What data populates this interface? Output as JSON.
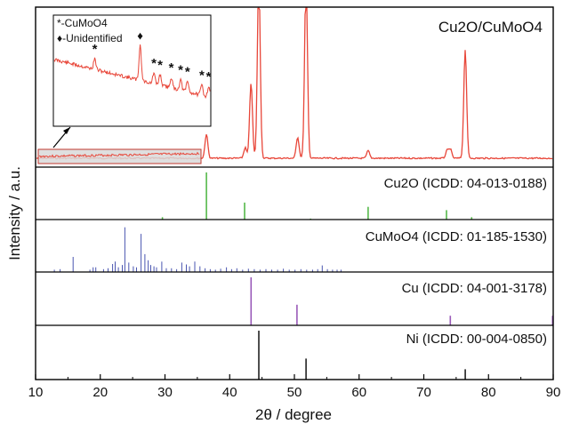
{
  "chart_data": {
    "type": "line",
    "xlabel": "2θ / degree",
    "ylabel": "Intensity / a.u.",
    "xlim": [
      10,
      90
    ],
    "xticks": [
      10,
      20,
      30,
      40,
      50,
      60,
      70,
      80,
      90
    ],
    "main_panel": {
      "label": "Cu2O/CuMoO4",
      "color": "#e8473a",
      "peaks": [
        {
          "x": 36.4,
          "height": 0.16
        },
        {
          "x": 42.4,
          "height": 0.07
        },
        {
          "x": 43.3,
          "height": 0.5
        },
        {
          "x": 44.5,
          "height": 1.2
        },
        {
          "x": 50.5,
          "height": 0.14
        },
        {
          "x": 51.8,
          "height": 1.2
        },
        {
          "x": 61.4,
          "height": 0.05
        },
        {
          "x": 73.6,
          "height": 0.05
        },
        {
          "x": 74.1,
          "height": 0.06
        },
        {
          "x": 76.4,
          "height": 0.72
        }
      ],
      "inset": {
        "x_range": [
          10,
          35
        ],
        "legend": [
          {
            "symbol": "*",
            "label": "-CuMoO4"
          },
          {
            "symbol": "♦",
            "label": "-Unidentified"
          }
        ],
        "markers": [
          {
            "x": 16.5,
            "symbol": "*"
          },
          {
            "x": 23.8,
            "symbol": "♦"
          },
          {
            "x": 26.0,
            "symbol": "*"
          },
          {
            "x": 27.0,
            "symbol": "*"
          },
          {
            "x": 28.8,
            "symbol": "*"
          },
          {
            "x": 30.3,
            "symbol": "*"
          },
          {
            "x": 31.4,
            "symbol": "*"
          },
          {
            "x": 33.7,
            "symbol": "*"
          },
          {
            "x": 34.8,
            "symbol": "*"
          }
        ]
      }
    },
    "reference_panels": [
      {
        "label": "Cu2O (ICDD: 04-013-0188)",
        "color": "#55b84a",
        "lines": [
          {
            "x": 29.6,
            "h": 0.05
          },
          {
            "x": 36.4,
            "h": 1.0
          },
          {
            "x": 42.3,
            "h": 0.36
          },
          {
            "x": 52.5,
            "h": 0.02
          },
          {
            "x": 61.4,
            "h": 0.27
          },
          {
            "x": 73.5,
            "h": 0.2
          },
          {
            "x": 77.4,
            "h": 0.05
          }
        ]
      },
      {
        "label": "CuMoO4 (ICDD: 01-185-1530)",
        "color": "#4a55b0",
        "lines": [
          {
            "x": 12.9,
            "h": 0.05
          },
          {
            "x": 13.8,
            "h": 0.06
          },
          {
            "x": 15.8,
            "h": 0.32
          },
          {
            "x": 18.4,
            "h": 0.05
          },
          {
            "x": 18.9,
            "h": 0.1
          },
          {
            "x": 19.3,
            "h": 0.1
          },
          {
            "x": 20.5,
            "h": 0.06
          },
          {
            "x": 21.2,
            "h": 0.08
          },
          {
            "x": 21.9,
            "h": 0.17
          },
          {
            "x": 22.3,
            "h": 0.22
          },
          {
            "x": 22.8,
            "h": 0.1
          },
          {
            "x": 23.4,
            "h": 0.15
          },
          {
            "x": 23.8,
            "h": 0.95
          },
          {
            "x": 24.4,
            "h": 0.2
          },
          {
            "x": 25.1,
            "h": 0.12
          },
          {
            "x": 25.6,
            "h": 0.1
          },
          {
            "x": 26.3,
            "h": 0.81
          },
          {
            "x": 26.9,
            "h": 0.38
          },
          {
            "x": 27.4,
            "h": 0.25
          },
          {
            "x": 27.8,
            "h": 0.15
          },
          {
            "x": 28.3,
            "h": 0.12
          },
          {
            "x": 28.7,
            "h": 0.1
          },
          {
            "x": 29.5,
            "h": 0.22
          },
          {
            "x": 30.2,
            "h": 0.08
          },
          {
            "x": 31.0,
            "h": 0.08
          },
          {
            "x": 31.8,
            "h": 0.06
          },
          {
            "x": 32.6,
            "h": 0.2
          },
          {
            "x": 33.3,
            "h": 0.16
          },
          {
            "x": 33.8,
            "h": 0.12
          },
          {
            "x": 34.6,
            "h": 0.22
          },
          {
            "x": 35.4,
            "h": 0.12
          },
          {
            "x": 36.2,
            "h": 0.08
          },
          {
            "x": 37.0,
            "h": 0.06
          },
          {
            "x": 37.8,
            "h": 0.05
          },
          {
            "x": 38.6,
            "h": 0.07
          },
          {
            "x": 39.5,
            "h": 0.1
          },
          {
            "x": 40.3,
            "h": 0.06
          },
          {
            "x": 41.1,
            "h": 0.08
          },
          {
            "x": 42.0,
            "h": 0.05
          },
          {
            "x": 42.9,
            "h": 0.07
          },
          {
            "x": 43.8,
            "h": 0.06
          },
          {
            "x": 44.7,
            "h": 0.05
          },
          {
            "x": 45.6,
            "h": 0.06
          },
          {
            "x": 46.5,
            "h": 0.05
          },
          {
            "x": 47.4,
            "h": 0.05
          },
          {
            "x": 48.3,
            "h": 0.07
          },
          {
            "x": 49.2,
            "h": 0.05
          },
          {
            "x": 50.1,
            "h": 0.05
          },
          {
            "x": 51.0,
            "h": 0.06
          },
          {
            "x": 51.9,
            "h": 0.05
          },
          {
            "x": 52.8,
            "h": 0.05
          },
          {
            "x": 53.6,
            "h": 0.06
          },
          {
            "x": 54.3,
            "h": 0.14
          },
          {
            "x": 55.1,
            "h": 0.06
          },
          {
            "x": 55.9,
            "h": 0.05
          },
          {
            "x": 56.6,
            "h": 0.05
          },
          {
            "x": 57.2,
            "h": 0.05
          }
        ]
      },
      {
        "label": "Cu (ICDD: 04-001-3178)",
        "color": "#9a5ab8",
        "lines": [
          {
            "x": 43.3,
            "h": 1.0
          },
          {
            "x": 50.4,
            "h": 0.43
          },
          {
            "x": 74.1,
            "h": 0.2
          },
          {
            "x": 89.9,
            "h": 0.2
          }
        ]
      },
      {
        "label": "Ni (ICDD: 00-004-0850)",
        "color": "#222222",
        "lines": [
          {
            "x": 44.5,
            "h": 1.0
          },
          {
            "x": 51.8,
            "h": 0.43
          },
          {
            "x": 76.4,
            "h": 0.21
          }
        ]
      }
    ]
  }
}
